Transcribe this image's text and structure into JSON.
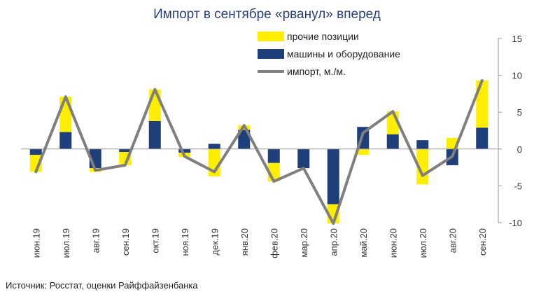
{
  "title": "Импорт в сентябре «рванул» вперед",
  "source": "Источник: Росстат, оценки Райффайзенбанка",
  "colors": {
    "other": "#ffee00",
    "machinery": "#1f3f7a",
    "import_line": "#7f7f7f",
    "axis": "#999999",
    "title": "#2a3f7a"
  },
  "chart_data": {
    "type": "bar",
    "stacked": true,
    "title": "Импорт в сентябре «рванул» вперед",
    "categories": [
      "июн.19",
      "июл.19",
      "авг.19",
      "сен.19",
      "окт.19",
      "ноя.19",
      "дек.19",
      "янв.20",
      "фев.20",
      "мар.20",
      "апр.20",
      "май.20",
      "июн.20",
      "июл.20",
      "авг.20",
      "сен.20"
    ],
    "ylim": [
      -10,
      15
    ],
    "yticks": [
      -10,
      -5,
      0,
      5,
      10,
      15
    ],
    "y_axis_side": "right",
    "grid": false,
    "legend_position": "top-right",
    "series": [
      {
        "name": "прочие позиции",
        "type": "bar",
        "color": "#ffee00",
        "values": [
          -2.3,
          4.8,
          -0.5,
          -1.8,
          4.3,
          -0.6,
          -3.7,
          0.6,
          -2.5,
          0.0,
          -2.6,
          -0.8,
          3.1,
          -4.8,
          1.5,
          6.4
        ]
      },
      {
        "name": "машины и оборудование",
        "type": "bar",
        "color": "#1f3f7a",
        "values": [
          -0.8,
          2.3,
          -2.6,
          -0.4,
          3.8,
          -0.5,
          0.7,
          2.6,
          -1.9,
          -2.6,
          -7.5,
          3.0,
          2.0,
          1.2,
          -2.2,
          2.9
        ]
      },
      {
        "name": "импорт, м./м.",
        "type": "line",
        "color": "#7f7f7f",
        "values": [
          -3.1,
          7.1,
          -2.9,
          -2.2,
          8.1,
          -1.0,
          -3.1,
          3.2,
          -4.4,
          -2.6,
          -10.1,
          2.2,
          5.1,
          -3.6,
          -1.0,
          9.3
        ]
      }
    ]
  }
}
